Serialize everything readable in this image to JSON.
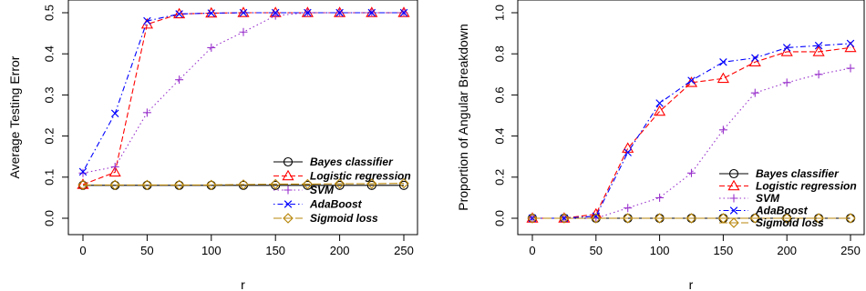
{
  "chart_data": [
    {
      "type": "line",
      "xlabel": "r",
      "ylabel": "Average Testing Error",
      "xlim": [
        0,
        250
      ],
      "ylim": [
        0,
        0.5
      ],
      "xticks": [
        "0",
        "50",
        "100",
        "150",
        "200",
        "250"
      ],
      "yticks": [
        "0.0",
        "0.1",
        "0.2",
        "0.3",
        "0.4",
        "0.5"
      ],
      "grid": false,
      "legend_position": "right",
      "x": [
        0,
        25,
        50,
        75,
        100,
        125,
        150,
        175,
        200,
        225,
        250
      ],
      "series": [
        {
          "name": "Bayes classifier",
          "color": "#000000",
          "marker": "circle",
          "dash": "solid",
          "values": [
            0.08,
            0.08,
            0.08,
            0.08,
            0.08,
            0.08,
            0.08,
            0.08,
            0.08,
            0.08,
            0.08
          ]
        },
        {
          "name": "Logistic regression",
          "color": "#ff0000",
          "marker": "triangle",
          "dash": "dashed",
          "values": [
            0.082,
            0.112,
            0.472,
            0.497,
            0.499,
            0.5,
            0.5,
            0.5,
            0.5,
            0.5,
            0.5
          ]
        },
        {
          "name": "SVM",
          "color": "#9932cc",
          "marker": "plus",
          "dash": "dotted",
          "values": [
            0.11,
            0.125,
            0.257,
            0.337,
            0.415,
            0.453,
            0.493,
            0.5,
            0.5,
            0.5,
            0.5
          ]
        },
        {
          "name": "AdaBoost",
          "color": "#0000ff",
          "marker": "x",
          "dash": "dotdash",
          "values": [
            0.113,
            0.255,
            0.48,
            0.497,
            0.499,
            0.5,
            0.5,
            0.5,
            0.5,
            0.5,
            0.5
          ]
        },
        {
          "name": "Sigmoid loss",
          "color": "#b8860b",
          "marker": "diamond",
          "dash": "longdash",
          "values": [
            0.081,
            0.081,
            0.081,
            0.081,
            0.081,
            0.082,
            0.083,
            0.083,
            0.084,
            0.084,
            0.085
          ]
        }
      ]
    },
    {
      "type": "line",
      "xlabel": "r",
      "ylabel": "Proportion of Angular Breakdown",
      "xlim": [
        0,
        250
      ],
      "ylim": [
        0,
        1.0
      ],
      "xticks": [
        "0",
        "50",
        "100",
        "150",
        "200",
        "250"
      ],
      "yticks": [
        "0.0",
        "0.2",
        "0.4",
        "0.6",
        "0.8",
        "1.0"
      ],
      "grid": false,
      "legend_position": "bottom-right",
      "x": [
        0,
        25,
        50,
        75,
        100,
        125,
        150,
        175,
        200,
        225,
        250
      ],
      "series": [
        {
          "name": "Bayes classifier",
          "color": "#000000",
          "marker": "circle",
          "dash": "solid",
          "values": [
            0,
            0,
            0,
            0,
            0,
            0,
            0,
            0,
            0,
            0,
            0
          ]
        },
        {
          "name": "Logistic regression",
          "color": "#ff0000",
          "marker": "triangle",
          "dash": "dashed",
          "values": [
            0,
            0,
            0.02,
            0.34,
            0.52,
            0.66,
            0.68,
            0.76,
            0.81,
            0.81,
            0.83
          ]
        },
        {
          "name": "SVM",
          "color": "#9932cc",
          "marker": "plus",
          "dash": "dotted",
          "values": [
            0,
            0,
            0,
            0.05,
            0.1,
            0.22,
            0.43,
            0.61,
            0.66,
            0.7,
            0.73
          ]
        },
        {
          "name": "AdaBoost",
          "color": "#0000ff",
          "marker": "x",
          "dash": "dotdash",
          "values": [
            0,
            0,
            0.01,
            0.32,
            0.56,
            0.67,
            0.76,
            0.78,
            0.83,
            0.84,
            0.85
          ]
        },
        {
          "name": "Sigmoid loss",
          "color": "#b8860b",
          "marker": "diamond",
          "dash": "longdash",
          "values": [
            0,
            0,
            0,
            0,
            0,
            0,
            0,
            0,
            0,
            0,
            0
          ]
        }
      ]
    }
  ]
}
